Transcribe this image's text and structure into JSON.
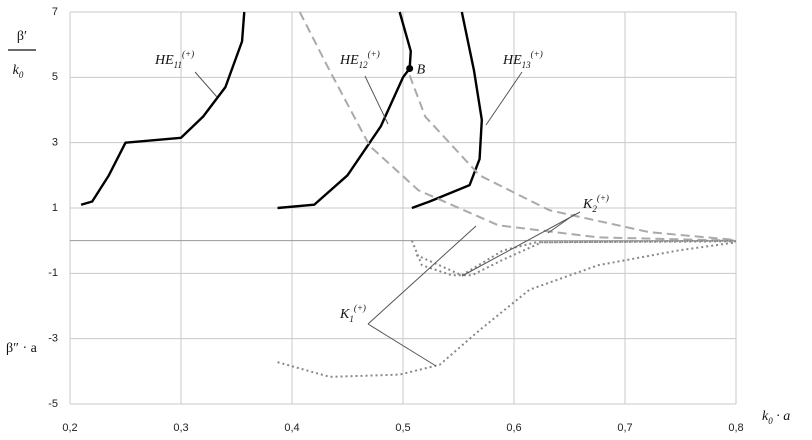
{
  "chart_data": {
    "type": "line",
    "xlim": [
      0.2,
      0.8
    ],
    "ylim": [
      -5,
      7
    ],
    "xticks": [
      {
        "value": 0.2,
        "label": "0,2"
      },
      {
        "value": 0.3,
        "label": "0,3"
      },
      {
        "value": 0.4,
        "label": "0,4"
      },
      {
        "value": 0.5,
        "label": "0,5"
      },
      {
        "value": 0.6,
        "label": "0,6"
      },
      {
        "value": 0.7,
        "label": "0,7"
      },
      {
        "value": 0.8,
        "label": "0,8"
      }
    ],
    "yticks": [
      -5,
      -3,
      -1,
      1,
      3,
      5,
      7
    ],
    "grid": true,
    "ylabel": {
      "numerator": "β′",
      "denominator": "k",
      "denominator_sub": "0"
    },
    "ylabel2": "β″ · a",
    "xlabel": {
      "text": "k",
      "sub": "0",
      "rest": " · a"
    },
    "series": [
      {
        "color": "#000000",
        "style": "solid",
        "x": [
          0.21,
          0.22,
          0.235,
          0.25,
          0.3,
          0.32,
          0.34,
          0.355,
          0.357
        ],
        "values": [
          1.1,
          1.2,
          2.0,
          3.0,
          3.15,
          3.8,
          4.7,
          6.1,
          7
        ]
      },
      {
        "color": "#000000",
        "style": "solid",
        "x": [
          0.387,
          0.42,
          0.45,
          0.48,
          0.5,
          0.506,
          0.507,
          0.497
        ],
        "values": [
          1.0,
          1.1,
          2.0,
          3.5,
          5.0,
          5.27,
          5.8,
          7
        ]
      },
      {
        "color": "#000000",
        "style": "solid",
        "x": [
          0.508,
          0.524,
          0.56,
          0.569,
          0.571,
          0.564,
          0.553
        ],
        "values": [
          1.0,
          1.2,
          1.7,
          2.5,
          3.7,
          5.2,
          7
        ]
      },
      {
        "color": "#aaaaaa",
        "style": "dashed",
        "x": [
          0.407,
          0.434,
          0.47,
          0.514,
          0.586,
          0.676,
          0.8
        ],
        "values": [
          7,
          5.2,
          2.9,
          1.54,
          0.47,
          0.1,
          0
        ]
      },
      {
        "color": "#aaaaaa",
        "style": "dashed",
        "x": [
          0.506,
          0.52,
          0.569,
          0.632,
          0.722,
          0.8
        ],
        "values": [
          5.06,
          3.8,
          2.0,
          0.93,
          0.26,
          0.02
        ]
      },
      {
        "color": "#888888",
        "style": "dotted",
        "x": [
          0.508,
          0.517,
          0.544,
          0.562,
          0.589,
          0.625,
          0.8
        ],
        "values": [
          0.0,
          -0.75,
          -1.06,
          -1.06,
          -0.6,
          -0.05,
          0
        ]
      },
      {
        "color": "#888888",
        "style": "dotted",
        "x": [
          0.512,
          0.553,
          0.59,
          0.62,
          0.8
        ],
        "values": [
          -0.44,
          -1.06,
          -0.3,
          -0.05,
          -0.02
        ]
      },
      {
        "color": "#888888",
        "style": "dotted",
        "x": [
          0.387,
          0.434,
          0.497,
          0.533,
          0.569,
          0.614,
          0.676,
          0.748,
          0.8
        ],
        "values": [
          -3.72,
          -4.17,
          -4.1,
          -3.8,
          -2.74,
          -1.5,
          -0.75,
          -0.3,
          -0.05
        ]
      }
    ],
    "points": [
      {
        "label": "B",
        "x": 0.506,
        "y": 5.27
      }
    ],
    "annotations": [
      {
        "text": "HE",
        "sub": "11",
        "sup": "(+)"
      },
      {
        "text": "HE",
        "sub": "12",
        "sup": "(+)"
      },
      {
        "text": "HE",
        "sub": "13",
        "sup": "(+)"
      },
      {
        "text": "K",
        "sub": "2",
        "sup": "(+)"
      },
      {
        "text": "K",
        "sub": "1",
        "sup": "(+)"
      }
    ]
  }
}
